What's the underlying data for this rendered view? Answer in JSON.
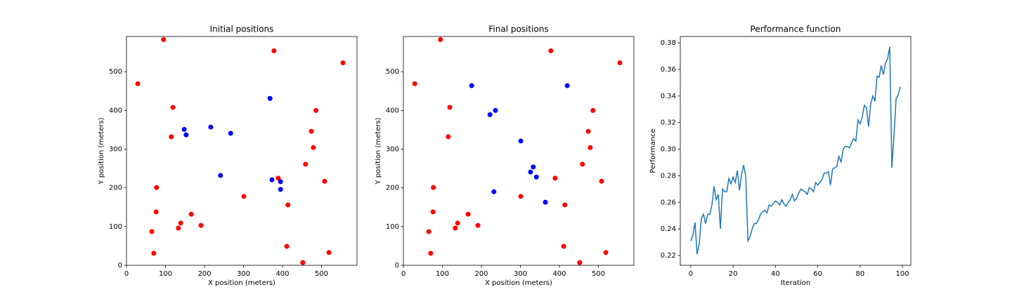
{
  "chart_data": [
    {
      "type": "scatter",
      "title": "Initial positions",
      "xlabel": "X position (meters)",
      "ylabel": "Y position (meters)",
      "xlim": [
        0,
        591
      ],
      "ylim": [
        0,
        591
      ],
      "xticks": [
        0,
        100,
        200,
        300,
        400,
        500
      ],
      "yticks": [
        0,
        100,
        200,
        300,
        400,
        500
      ],
      "series": [
        {
          "color": "#ff0000",
          "x": [
            95,
            29,
            378,
            555,
            119,
            115,
            486,
            474,
            479,
            459,
            389,
            77,
            508,
            301,
            414,
            76,
            166,
            139,
            133,
            191,
            65,
            70,
            411,
            519,
            452
          ],
          "values": [
            583,
            469,
            554,
            523,
            408,
            332,
            400,
            346,
            304,
            261,
            225,
            201,
            217,
            178,
            156,
            138,
            132,
            109,
            96,
            103,
            87,
            31,
            49,
            33,
            7
          ]
        },
        {
          "color": "#0000ff",
          "x": [
            148,
            153,
            216,
            267,
            368,
            241,
            373,
            395,
            395
          ],
          "values": [
            351,
            337,
            357,
            341,
            431,
            232,
            221,
            216,
            196
          ]
        }
      ]
    },
    {
      "type": "scatter",
      "title": "Final positions",
      "xlabel": "X position (meters)",
      "ylabel": "Y position (meters)",
      "xlim": [
        0,
        591
      ],
      "ylim": [
        0,
        591
      ],
      "xticks": [
        0,
        100,
        200,
        300,
        400,
        500
      ],
      "yticks": [
        0,
        100,
        200,
        300,
        400,
        500
      ],
      "series": [
        {
          "color": "#ff0000",
          "x": [
            95,
            29,
            378,
            555,
            119,
            115,
            486,
            474,
            479,
            459,
            389,
            77,
            508,
            301,
            414,
            76,
            166,
            139,
            133,
            191,
            65,
            70,
            411,
            519,
            452
          ],
          "values": [
            583,
            469,
            554,
            523,
            408,
            332,
            400,
            346,
            304,
            261,
            225,
            201,
            217,
            178,
            156,
            138,
            132,
            109,
            96,
            103,
            87,
            31,
            49,
            33,
            7
          ]
        },
        {
          "color": "#0000ff",
          "x": [
            175,
            420,
            236,
            222,
            301,
            333,
            326,
            341,
            232,
            364
          ],
          "values": [
            464,
            464,
            400,
            389,
            321,
            254,
            241,
            228,
            190,
            163
          ]
        }
      ]
    },
    {
      "type": "line",
      "title": "Performance function",
      "xlabel": "Iteration",
      "ylabel": "Performance",
      "xlim": [
        -4.95,
        103.95
      ],
      "ylim": [
        0.2126,
        0.3848
      ],
      "xticks": [
        0,
        20,
        40,
        60,
        80,
        100
      ],
      "yticks": [
        0.22,
        0.24,
        0.26,
        0.28,
        {
          "value": 0.3,
          "label": "0.30"
        },
        0.32,
        0.34,
        0.36,
        0.38
      ],
      "x": [
        0,
        1,
        2,
        3,
        4,
        5,
        6,
        7,
        8,
        9,
        10,
        11,
        12,
        13,
        14,
        15,
        16,
        17,
        18,
        19,
        20,
        21,
        22,
        23,
        24,
        25,
        26,
        27,
        28,
        29,
        30,
        31,
        32,
        33,
        34,
        35,
        36,
        37,
        38,
        39,
        40,
        41,
        42,
        43,
        44,
        45,
        46,
        47,
        48,
        49,
        50,
        51,
        52,
        53,
        54,
        55,
        56,
        57,
        58,
        59,
        60,
        61,
        62,
        63,
        64,
        65,
        66,
        67,
        68,
        69,
        70,
        71,
        72,
        73,
        74,
        75,
        76,
        77,
        78,
        79,
        80,
        81,
        82,
        83,
        84,
        85,
        86,
        87,
        88,
        89,
        90,
        91,
        92,
        93,
        94,
        95,
        96,
        97,
        98,
        99
      ],
      "series": [
        {
          "color": "#1f77b4",
          "values": [
            0.231,
            0.235,
            0.245,
            0.221,
            0.229,
            0.248,
            0.251,
            0.244,
            0.251,
            0.251,
            0.258,
            0.272,
            0.262,
            0.266,
            0.24,
            0.27,
            0.268,
            0.268,
            0.278,
            0.274,
            0.279,
            0.275,
            0.284,
            0.269,
            0.281,
            0.288,
            0.279,
            0.231,
            0.234,
            0.24,
            0.244,
            0.244,
            0.247,
            0.251,
            0.253,
            0.254,
            0.252,
            0.258,
            0.257,
            0.259,
            0.261,
            0.26,
            0.258,
            0.262,
            0.259,
            0.257,
            0.26,
            0.262,
            0.266,
            0.261,
            0.263,
            0.267,
            0.27,
            0.269,
            0.268,
            0.266,
            0.271,
            0.27,
            0.268,
            0.275,
            0.273,
            0.275,
            0.277,
            0.282,
            0.282,
            0.283,
            0.273,
            0.285,
            0.286,
            0.287,
            0.295,
            0.29,
            0.3,
            0.302,
            0.302,
            0.301,
            0.305,
            0.308,
            0.306,
            0.322,
            0.319,
            0.324,
            0.333,
            0.331,
            0.317,
            0.334,
            0.34,
            0.336,
            0.355,
            0.354,
            0.363,
            0.356,
            0.365,
            0.368,
            0.377,
            0.286,
            0.31,
            0.338,
            0.341,
            0.347
          ]
        }
      ]
    }
  ]
}
